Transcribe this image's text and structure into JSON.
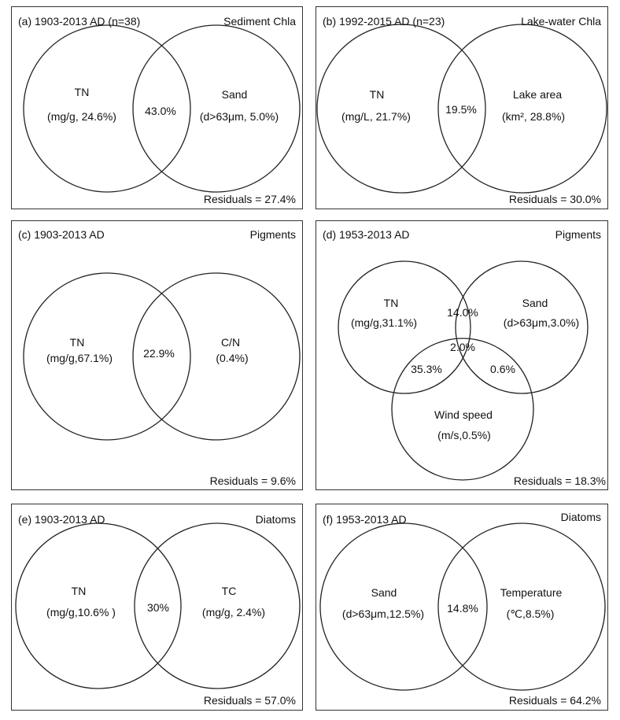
{
  "panels": [
    {
      "id": "a",
      "label": "(a) 1903-2013 AD (n=38)",
      "type": "Sediment Chla",
      "residuals": "Residuals = 27.4%",
      "sets": [
        {
          "name": "TN",
          "detail": "(mg/g, 24.6%)"
        },
        {
          "name": "Sand",
          "detail": "(d>63μm, 5.0%)"
        }
      ],
      "overlap": "43.0%"
    },
    {
      "id": "b",
      "label": "(b) 1992-2015 AD (n=23)",
      "type": "Lake-water Chla",
      "residuals": "Residuals = 30.0%",
      "sets": [
        {
          "name": "TN",
          "detail": "(mg/L, 21.7%)"
        },
        {
          "name": "Lake area",
          "detail": "(km², 28.8%)"
        }
      ],
      "overlap": "19.5%"
    },
    {
      "id": "c",
      "label": "(c) 1903-2013 AD",
      "type": "Pigments",
      "residuals": "Residuals = 9.6%",
      "sets": [
        {
          "name": "TN",
          "detail": "(mg/g,67.1%)"
        },
        {
          "name": "C/N",
          "detail": "(0.4%)"
        }
      ],
      "overlap": "22.9%"
    },
    {
      "id": "d",
      "label": "(d) 1953-2013 AD",
      "type": "Pigments",
      "residuals": "Residuals = 18.3%",
      "sets": [
        {
          "name": "TN",
          "detail": "(mg/g,31.1%)"
        },
        {
          "name": "Sand",
          "detail": "(d>63μm,3.0%)"
        },
        {
          "name": "Wind speed",
          "detail": "(m/s,0.5%)"
        }
      ],
      "overlap_tn_sand": "14.0%",
      "overlap_tn_wind": "35.3%",
      "overlap_sand_wind": "0.6%",
      "overlap_all": "2.0%"
    },
    {
      "id": "e",
      "label": "(e) 1903-2013 AD",
      "type": "Diatoms",
      "residuals": "Residuals = 57.0%",
      "sets": [
        {
          "name": "TN",
          "detail": "(mg/g,10.6% )"
        },
        {
          "name": "TC",
          "detail": "(mg/g, 2.4%)"
        }
      ],
      "overlap": "30%"
    },
    {
      "id": "f",
      "label": "(f) 1953-2013 AD",
      "type": "Diatoms",
      "residuals": "Residuals = 64.2%",
      "sets": [
        {
          "name": "Sand",
          "detail": "(d>63μm,12.5%)"
        },
        {
          "name": "Temperature",
          "detail": "(℃,8.5%)"
        }
      ],
      "overlap": "14.8%"
    }
  ]
}
